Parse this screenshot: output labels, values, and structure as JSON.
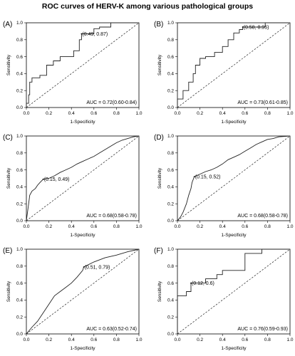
{
  "figure_title": "ROC curves of HERV-K among various pathological groups",
  "chart_data": [
    {
      "type": "line",
      "panel_label": "(A)",
      "xlabel": "1-Specificity",
      "ylabel": "Sensitivity",
      "xlim": [
        0,
        1
      ],
      "ylim": [
        0,
        1
      ],
      "xticks": [
        "0.0",
        "0.2",
        "0.4",
        "0.6",
        "0.8",
        "1.0"
      ],
      "yticks": [
        "0.0",
        "0.2",
        "0.4",
        "0.6",
        "0.8",
        "1.0"
      ],
      "auc_text": "AUC = 0.72(0.60-0.84)",
      "cutoff_text": "(0.49, 0.87)",
      "cutoff_point": [
        0.49,
        0.87
      ],
      "roc": [
        [
          0,
          0
        ],
        [
          0,
          0.05
        ],
        [
          0.02,
          0.05
        ],
        [
          0.02,
          0.15
        ],
        [
          0.03,
          0.15
        ],
        [
          0.03,
          0.3
        ],
        [
          0.05,
          0.3
        ],
        [
          0.05,
          0.35
        ],
        [
          0.12,
          0.35
        ],
        [
          0.12,
          0.38
        ],
        [
          0.18,
          0.38
        ],
        [
          0.18,
          0.5
        ],
        [
          0.24,
          0.5
        ],
        [
          0.24,
          0.55
        ],
        [
          0.3,
          0.55
        ],
        [
          0.3,
          0.6
        ],
        [
          0.42,
          0.6
        ],
        [
          0.42,
          0.67
        ],
        [
          0.47,
          0.67
        ],
        [
          0.47,
          0.8
        ],
        [
          0.49,
          0.8
        ],
        [
          0.49,
          0.87
        ],
        [
          0.6,
          0.87
        ],
        [
          0.6,
          0.93
        ],
        [
          0.65,
          0.93
        ],
        [
          0.65,
          0.95
        ],
        [
          0.75,
          0.95
        ],
        [
          0.75,
          1
        ],
        [
          1,
          1
        ]
      ]
    },
    {
      "type": "line",
      "panel_label": "(B)",
      "xlabel": "1-Specificity",
      "ylabel": "Sensitivity",
      "xlim": [
        0,
        1
      ],
      "ylim": [
        0,
        1
      ],
      "xticks": [
        "0.0",
        "0.2",
        "0.4",
        "0.6",
        "0.8",
        "1.0"
      ],
      "yticks": [
        "0.0",
        "0.2",
        "0.4",
        "0.6",
        "0.8",
        "1.0"
      ],
      "auc_text": "AUC = 0.73(0.61-0.85)",
      "cutoff_text": "(0.58, 0.95)",
      "cutoff_point": [
        0.58,
        0.95
      ],
      "roc": [
        [
          0,
          0
        ],
        [
          0,
          0.1
        ],
        [
          0.05,
          0.1
        ],
        [
          0.05,
          0.2
        ],
        [
          0.1,
          0.2
        ],
        [
          0.1,
          0.3
        ],
        [
          0.14,
          0.3
        ],
        [
          0.14,
          0.4
        ],
        [
          0.16,
          0.4
        ],
        [
          0.16,
          0.5
        ],
        [
          0.2,
          0.5
        ],
        [
          0.2,
          0.58
        ],
        [
          0.25,
          0.58
        ],
        [
          0.25,
          0.6
        ],
        [
          0.33,
          0.6
        ],
        [
          0.33,
          0.65
        ],
        [
          0.4,
          0.65
        ],
        [
          0.4,
          0.72
        ],
        [
          0.45,
          0.72
        ],
        [
          0.45,
          0.8
        ],
        [
          0.5,
          0.8
        ],
        [
          0.5,
          0.88
        ],
        [
          0.55,
          0.88
        ],
        [
          0.55,
          0.92
        ],
        [
          0.58,
          0.92
        ],
        [
          0.58,
          0.95
        ],
        [
          0.78,
          0.95
        ],
        [
          0.78,
          1
        ],
        [
          1,
          1
        ]
      ]
    },
    {
      "type": "line",
      "panel_label": "(C)",
      "xlabel": "1-Specificity",
      "ylabel": "Sensitivity",
      "xlim": [
        0,
        1
      ],
      "ylim": [
        0,
        1
      ],
      "xticks": [
        "0.0",
        "0.2",
        "0.4",
        "0.6",
        "0.8",
        "1.0"
      ],
      "yticks": [
        "0.0",
        "0.2",
        "0.4",
        "0.6",
        "0.8",
        "1.0"
      ],
      "auc_text": "AUC = 0.68(0.58-0.78)",
      "cutoff_text": "(0.15, 0.49)",
      "cutoff_point": [
        0.15,
        0.49
      ],
      "roc": [
        [
          0,
          0
        ],
        [
          0.01,
          0.1
        ],
        [
          0.02,
          0.2
        ],
        [
          0.03,
          0.3
        ],
        [
          0.05,
          0.35
        ],
        [
          0.08,
          0.38
        ],
        [
          0.1,
          0.42
        ],
        [
          0.12,
          0.45
        ],
        [
          0.15,
          0.49
        ],
        [
          0.2,
          0.5
        ],
        [
          0.25,
          0.53
        ],
        [
          0.3,
          0.57
        ],
        [
          0.35,
          0.6
        ],
        [
          0.4,
          0.63
        ],
        [
          0.45,
          0.67
        ],
        [
          0.5,
          0.7
        ],
        [
          0.55,
          0.73
        ],
        [
          0.6,
          0.76
        ],
        [
          0.65,
          0.8
        ],
        [
          0.7,
          0.84
        ],
        [
          0.75,
          0.88
        ],
        [
          0.8,
          0.92
        ],
        [
          0.85,
          0.95
        ],
        [
          0.9,
          0.97
        ],
        [
          0.95,
          0.99
        ],
        [
          1,
          1
        ]
      ]
    },
    {
      "type": "line",
      "panel_label": "(D)",
      "xlabel": "1-Specificity",
      "ylabel": "Sensitivity",
      "xlim": [
        0,
        1
      ],
      "ylim": [
        0,
        1
      ],
      "xticks": [
        "0.0",
        "0.2",
        "0.4",
        "0.6",
        "0.8",
        "1.0"
      ],
      "yticks": [
        "0.0",
        "0.2",
        "0.4",
        "0.6",
        "0.8",
        "1.0"
      ],
      "auc_text": "AUC = 0.68(0.58-0.78)",
      "cutoff_text": "(0.15, 0.52)",
      "cutoff_point": [
        0.15,
        0.52
      ],
      "roc": [
        [
          0,
          0
        ],
        [
          0.03,
          0.05
        ],
        [
          0.05,
          0.1
        ],
        [
          0.08,
          0.2
        ],
        [
          0.1,
          0.3
        ],
        [
          0.12,
          0.38
        ],
        [
          0.13,
          0.45
        ],
        [
          0.15,
          0.52
        ],
        [
          0.2,
          0.55
        ],
        [
          0.25,
          0.58
        ],
        [
          0.3,
          0.6
        ],
        [
          0.35,
          0.63
        ],
        [
          0.4,
          0.67
        ],
        [
          0.45,
          0.72
        ],
        [
          0.5,
          0.75
        ],
        [
          0.55,
          0.78
        ],
        [
          0.6,
          0.82
        ],
        [
          0.65,
          0.86
        ],
        [
          0.7,
          0.9
        ],
        [
          0.75,
          0.93
        ],
        [
          0.8,
          0.96
        ],
        [
          0.85,
          0.97
        ],
        [
          0.9,
          0.99
        ],
        [
          1,
          1
        ]
      ]
    },
    {
      "type": "line",
      "panel_label": "(E)",
      "xlabel": "1-Specificity",
      "ylabel": "Sensitivity",
      "xlim": [
        0,
        1
      ],
      "ylim": [
        0,
        1
      ],
      "xticks": [
        "0.0",
        "0.2",
        "0.4",
        "0.6",
        "0.8",
        "1.0"
      ],
      "yticks": [
        "0.0",
        "0.2",
        "0.4",
        "0.6",
        "0.8",
        "1.0"
      ],
      "auc_text": "AUC = 0.63(0.52-0.74)",
      "cutoff_text": "(0.51, 0.79)",
      "cutoff_point": [
        0.51,
        0.79
      ],
      "roc": [
        [
          0,
          0
        ],
        [
          0.05,
          0.08
        ],
        [
          0.1,
          0.15
        ],
        [
          0.15,
          0.25
        ],
        [
          0.2,
          0.35
        ],
        [
          0.25,
          0.45
        ],
        [
          0.3,
          0.5
        ],
        [
          0.35,
          0.55
        ],
        [
          0.4,
          0.6
        ],
        [
          0.45,
          0.67
        ],
        [
          0.5,
          0.75
        ],
        [
          0.51,
          0.79
        ],
        [
          0.6,
          0.85
        ],
        [
          0.7,
          0.9
        ],
        [
          0.8,
          0.93
        ],
        [
          0.9,
          0.97
        ],
        [
          1,
          1
        ]
      ]
    },
    {
      "type": "line",
      "panel_label": "(F)",
      "xlabel": "1-Specificity",
      "ylabel": "Sensitivity",
      "xlim": [
        0,
        1
      ],
      "ylim": [
        0,
        1
      ],
      "xticks": [
        "0.0",
        "0.2",
        "0.4",
        "0.6",
        "0.8",
        "1.0"
      ],
      "yticks": [
        "0.0",
        "0.2",
        "0.4",
        "0.6",
        "0.8",
        "1.0"
      ],
      "auc_text": "AUC = 0.76(0.59-0.93)",
      "cutoff_text": "(0.12, 0.6)",
      "cutoff_point": [
        0.12,
        0.6
      ],
      "roc": [
        [
          0,
          0
        ],
        [
          0,
          0.45
        ],
        [
          0.08,
          0.45
        ],
        [
          0.08,
          0.5
        ],
        [
          0.12,
          0.5
        ],
        [
          0.12,
          0.6
        ],
        [
          0.25,
          0.6
        ],
        [
          0.25,
          0.65
        ],
        [
          0.35,
          0.65
        ],
        [
          0.35,
          0.7
        ],
        [
          0.4,
          0.7
        ],
        [
          0.4,
          0.75
        ],
        [
          0.6,
          0.75
        ],
        [
          0.6,
          0.95
        ],
        [
          0.75,
          0.95
        ],
        [
          0.75,
          1
        ],
        [
          1,
          1
        ]
      ]
    }
  ]
}
